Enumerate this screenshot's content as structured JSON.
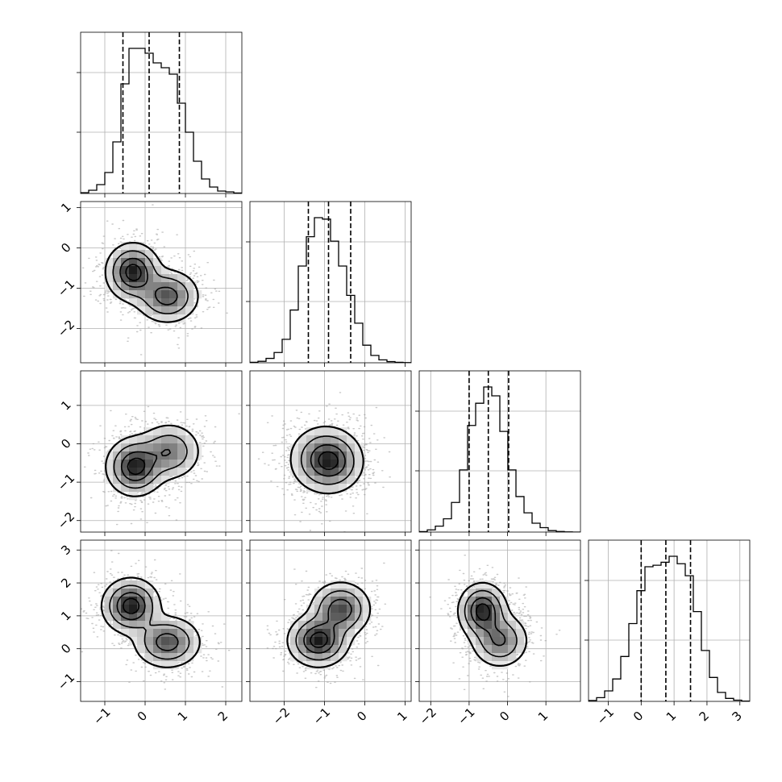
{
  "chart_data": {
    "type": "corner",
    "grid": true,
    "color": "#000000",
    "params": [
      {
        "range": [
          -1.6,
          2.4
        ],
        "ticks": [
          -1,
          0,
          1,
          2
        ],
        "tick_labels": [
          "−1",
          "0",
          "1",
          "2"
        ],
        "quantiles": [
          -0.55,
          0.1,
          0.85
        ],
        "hist": {
          "bins": [
            -1.6,
            -1.4,
            -1.2,
            -1.0,
            -0.8,
            -0.6,
            -0.4,
            -0.2,
            0.0,
            0.2,
            0.4,
            0.6,
            0.8,
            1.0,
            1.2,
            1.4,
            1.6,
            1.8,
            2.0,
            2.2,
            2.4
          ],
          "counts": [
            0.005,
            0.02,
            0.055,
            0.13,
            0.32,
            0.68,
            0.9,
            0.9,
            0.87,
            0.81,
            0.78,
            0.74,
            0.56,
            0.38,
            0.2,
            0.09,
            0.04,
            0.015,
            0.01,
            0.003
          ]
        }
      },
      {
        "range": [
          -2.85,
          1.15
        ],
        "ticks": [
          -2,
          -1,
          0,
          1
        ],
        "tick_labels": [
          "−2",
          "−1",
          "0",
          "1"
        ],
        "quantiles": [
          -1.4,
          -0.9,
          -0.35
        ],
        "hist": {
          "bins": [
            -2.85,
            -2.65,
            -2.45,
            -2.25,
            -2.05,
            -1.85,
            -1.65,
            -1.45,
            -1.25,
            -1.05,
            -0.85,
            -0.65,
            -0.45,
            -0.25,
            -0.05,
            0.15,
            0.35,
            0.55,
            0.75,
            0.95,
            1.15
          ],
          "counts": [
            0.003,
            0.01,
            0.03,
            0.07,
            0.16,
            0.36,
            0.66,
            0.86,
            0.99,
            0.98,
            0.83,
            0.66,
            0.46,
            0.27,
            0.12,
            0.05,
            0.02,
            0.008,
            0.003,
            0.001
          ]
        }
      },
      {
        "range": [
          -2.3,
          1.9
        ],
        "ticks": [
          -2,
          -1,
          0,
          1
        ],
        "tick_labels": [
          "−2",
          "−1",
          "0",
          "1"
        ],
        "quantiles": [
          -1.0,
          -0.5,
          0.03
        ],
        "hist": {
          "bins": [
            -2.3,
            -2.09,
            -1.88,
            -1.67,
            -1.46,
            -1.25,
            -1.04,
            -0.83,
            -0.62,
            -0.41,
            -0.2,
            0.01,
            0.22,
            0.43,
            0.64,
            0.85,
            1.06,
            1.27,
            1.48,
            1.69,
            1.9
          ],
          "counts": [
            0.003,
            0.015,
            0.04,
            0.09,
            0.2,
            0.42,
            0.72,
            0.87,
            0.98,
            0.92,
            0.68,
            0.42,
            0.24,
            0.13,
            0.06,
            0.03,
            0.01,
            0.004,
            0.001,
            0.0
          ]
        }
      },
      {
        "range": [
          -1.6,
          3.3
        ],
        "ticks": [
          -1,
          0,
          1,
          2,
          3
        ],
        "tick_labels": [
          "−1",
          "0",
          "1",
          "2",
          "3"
        ],
        "quantiles": [
          0.0,
          0.75,
          1.5
        ],
        "hist": {
          "bins": [
            -1.6,
            -1.355,
            -1.11,
            -0.865,
            -0.62,
            -0.375,
            -0.13,
            0.115,
            0.36,
            0.605,
            0.85,
            1.095,
            1.34,
            1.585,
            1.83,
            2.075,
            2.32,
            2.565,
            2.81,
            3.055,
            3.3
          ],
          "counts": [
            0.006,
            0.025,
            0.07,
            0.15,
            0.3,
            0.52,
            0.74,
            0.9,
            0.91,
            0.93,
            0.97,
            0.92,
            0.84,
            0.6,
            0.34,
            0.16,
            0.06,
            0.02,
            0.008,
            0.002
          ]
        }
      }
    ],
    "pairs": [
      {
        "row": 1,
        "col": 0,
        "blobs": [
          {
            "cx": -0.3,
            "cy": -0.6,
            "sx": 0.32,
            "sy": 0.34,
            "w": 1.0
          },
          {
            "cx": 0.55,
            "cy": -1.2,
            "sx": 0.38,
            "sy": 0.32,
            "w": 0.75
          }
        ]
      },
      {
        "row": 2,
        "col": 0,
        "blobs": [
          {
            "cx": -0.25,
            "cy": -0.6,
            "sx": 0.34,
            "sy": 0.36,
            "w": 1.0
          },
          {
            "cx": 0.6,
            "cy": -0.2,
            "sx": 0.38,
            "sy": 0.36,
            "w": 0.6
          }
        ]
      },
      {
        "row": 2,
        "col": 1,
        "blobs": [
          {
            "cx": -1.0,
            "cy": -0.4,
            "sx": 0.42,
            "sy": 0.42,
            "w": 1.0
          },
          {
            "cx": -0.75,
            "cy": -0.5,
            "sx": 0.36,
            "sy": 0.36,
            "w": 0.5
          }
        ]
      },
      {
        "row": 3,
        "col": 0,
        "blobs": [
          {
            "cx": -0.35,
            "cy": 1.3,
            "sx": 0.34,
            "sy": 0.4,
            "w": 1.0
          },
          {
            "cx": 0.55,
            "cy": 0.2,
            "sx": 0.4,
            "sy": 0.38,
            "w": 0.75
          }
        ]
      },
      {
        "row": 3,
        "col": 1,
        "blobs": [
          {
            "cx": -1.15,
            "cy": 0.25,
            "sx": 0.36,
            "sy": 0.38,
            "w": 1.0
          },
          {
            "cx": -0.6,
            "cy": 1.2,
            "sx": 0.36,
            "sy": 0.4,
            "w": 0.8
          }
        ]
      },
      {
        "row": 3,
        "col": 2,
        "blobs": [
          {
            "cx": -0.65,
            "cy": 1.15,
            "sx": 0.3,
            "sy": 0.4,
            "w": 1.0
          },
          {
            "cx": -0.2,
            "cy": 0.25,
            "sx": 0.36,
            "sy": 0.4,
            "w": 0.65
          }
        ]
      }
    ]
  }
}
